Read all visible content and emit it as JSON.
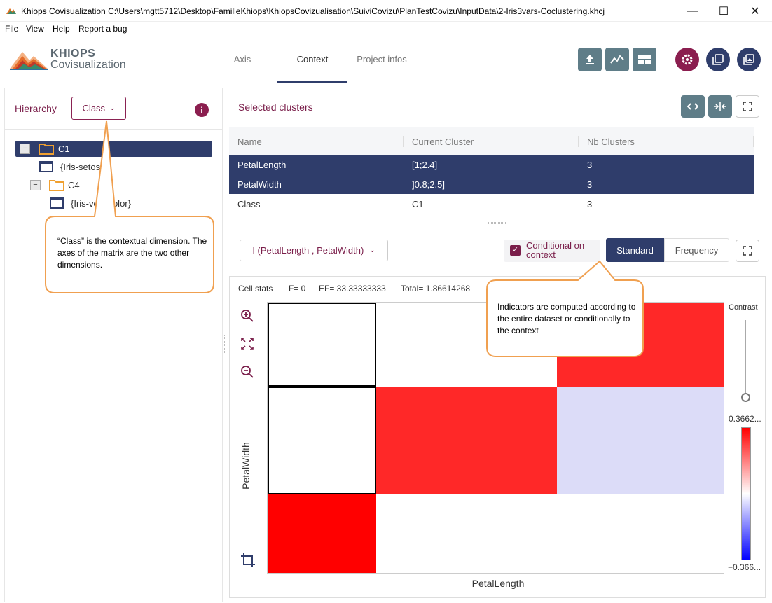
{
  "window": {
    "title": "Khiops Covisualization C:\\Users\\mgtt5712\\Desktop\\FamilleKhiops\\KhiopsCovizualisation\\SuiviCovizu\\PlanTestCovizu\\InputData\\2-Iris3vars-Coclustering.khcj",
    "minimize": "—",
    "maximize": "☐",
    "close": "✕"
  },
  "menu": [
    "File",
    "View",
    "Help",
    "Report a bug"
  ],
  "logo": {
    "line1": "KHIOPS",
    "line2": "Covisualization"
  },
  "tabs": [
    "Axis",
    "Context",
    "Project infos"
  ],
  "left": {
    "hierarchy_label": "Hierarchy",
    "hierarchy_value": "Class",
    "info": "i",
    "tree": [
      {
        "label": "C1",
        "minus": "−"
      },
      {
        "label": "{Iris-setosa}"
      },
      {
        "label": "C4",
        "minus": "−"
      },
      {
        "label": "{Iris-versicolor}"
      }
    ]
  },
  "selected": {
    "title": "Selected clusters",
    "headers": [
      "Name",
      "Current Cluster",
      "Nb Clusters"
    ],
    "rows": [
      {
        "name": "PetalLength",
        "cluster": "[1;2.4]",
        "nb": "3"
      },
      {
        "name": "PetalWidth",
        "cluster": "]0.8;2.5]",
        "nb": "3"
      },
      {
        "name": "Class",
        "cluster": "C1",
        "nb": "3"
      }
    ]
  },
  "matrix": {
    "select_value": "I (PetalLength , PetalWidth)",
    "conditional_label": "Conditional on context",
    "checked": "✓",
    "mode_standard": "Standard",
    "mode_frequency": "Frequency",
    "stats_label": "Cell stats",
    "stats_f": "F= 0",
    "stats_ef": "EF= 33.33333333",
    "stats_total": "Total= 1.86614268",
    "xlabel": "PetalLength",
    "ylabel": "PetalWidth",
    "contrast_label": "Contrast",
    "legend_max": "0.3662...",
    "legend_min": "−0.366...",
    "cells": [
      {
        "col": 0,
        "row": 0,
        "color": "#ffffff"
      },
      {
        "col": 1,
        "row": 0,
        "color": "#ffffff"
      },
      {
        "col": 2,
        "row": 0,
        "color": "#ff2828"
      },
      {
        "col": 0,
        "row": 1,
        "color": "#ffffff"
      },
      {
        "col": 1,
        "row": 1,
        "color": "#ff2828"
      },
      {
        "col": 2,
        "row": 1,
        "color": "#dcdcf8"
      },
      {
        "col": 0,
        "row": 2,
        "color": "#ff0000"
      },
      {
        "col": 1,
        "row": 2,
        "color": "#ffffff"
      },
      {
        "col": 2,
        "row": 2,
        "color": "#ffffff"
      }
    ]
  },
  "callouts": {
    "class_note": "“Class” is the contextual dimension. The axes of the matrix are the two other dimensions.",
    "indicators_note": "Indicators are computed according to the entire dataset or conditionally to the context"
  },
  "colors": {
    "primary": "#2f3d6b",
    "accent": "#7a1e4a",
    "teal": "#5f7d88",
    "callout_border": "#f0a050"
  }
}
